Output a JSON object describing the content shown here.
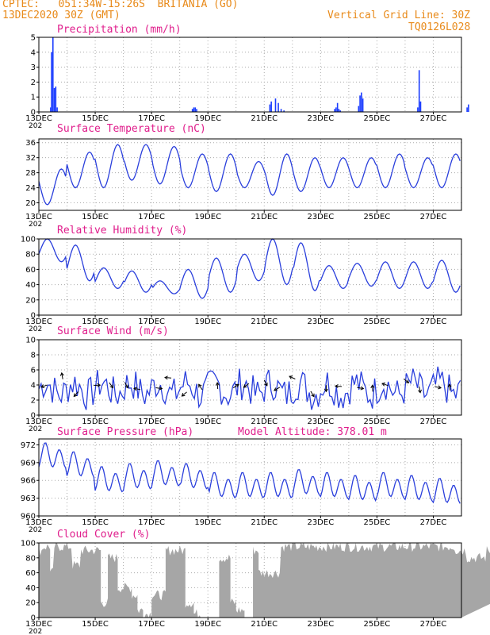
{
  "header": {
    "line1": "CPTEC:   051:34W-15:26S  BRITANIA (GO)",
    "line2": "13DEC2020 30Z (GMT)",
    "right1": "Vertical Grid Line: 30Z",
    "right2": "TQ0126L028"
  },
  "x_tick_labels": [
    "13DEC",
    "15DEC",
    "17DEC",
    "19DEC",
    "21DEC",
    "23DEC",
    "25DEC",
    "27DEC"
  ],
  "year_label": "202",
  "chart_data": [
    {
      "id": "precip",
      "type": "bar",
      "title": "Precipitation (mm/h)",
      "ylim": [
        0,
        5
      ],
      "yticks": [
        0,
        1,
        2,
        3,
        4,
        5
      ],
      "x_unit": "days since 13DEC 00Z",
      "x": [
        0.42,
        0.45,
        0.5,
        0.55,
        0.6,
        0.65,
        5.45,
        5.5,
        5.55,
        5.6,
        8.2,
        8.25,
        8.4,
        8.5,
        8.6,
        8.7,
        10.5,
        10.55,
        10.6,
        10.65,
        10.7,
        11.35,
        11.4,
        11.45,
        11.5,
        13.45,
        13.5,
        13.55,
        15.2,
        15.25,
        16.4,
        16.45,
        18.1,
        18.15,
        18.2,
        18.25,
        18.3,
        19.15,
        19.2,
        19.3
      ],
      "values": [
        0.3,
        4.0,
        5.0,
        1.6,
        1.7,
        0.3,
        0.2,
        0.3,
        0.3,
        0.2,
        0.5,
        0.7,
        0.9,
        0.6,
        0.2,
        0.1,
        0.2,
        0.3,
        0.6,
        0.2,
        0.1,
        0.4,
        1.1,
        1.3,
        0.9,
        0.3,
        2.8,
        0.7,
        0.3,
        0.5,
        0.3,
        0.5,
        1.3,
        0.8,
        0.5,
        0.4,
        0.2,
        0.3,
        0.5,
        0.3
      ]
    },
    {
      "id": "temp",
      "type": "line",
      "title": "Surface Temperature (nC)",
      "ylim": [
        18,
        37
      ],
      "yticks": [
        20,
        24,
        28,
        32,
        36
      ],
      "series": [
        {
          "min": [
            19.5,
            24,
            24,
            26,
            25,
            24,
            23,
            24,
            22,
            23,
            24,
            24,
            24,
            24,
            24
          ],
          "max": [
            29,
            33.5,
            35.5,
            35.5,
            35,
            33,
            33,
            31,
            33,
            32,
            32,
            32,
            33,
            32,
            33
          ]
        }
      ]
    },
    {
      "id": "rh",
      "type": "line",
      "title": "Relative Humidity (%)",
      "ylim": [
        0,
        100
      ],
      "yticks": [
        0,
        20,
        40,
        60,
        80,
        100
      ],
      "series": [
        {
          "min": [
            70,
            45,
            35,
            30,
            28,
            22,
            30,
            45,
            40,
            32,
            35,
            38,
            35,
            35,
            30
          ],
          "max": [
            100,
            92,
            62,
            58,
            45,
            60,
            75,
            80,
            100,
            95,
            65,
            68,
            70,
            70,
            72
          ]
        }
      ]
    },
    {
      "id": "wind",
      "type": "line",
      "title": "Surface Wind (m/s)",
      "ylim": [
        0,
        10
      ],
      "yticks": [
        0,
        2,
        4,
        6,
        8,
        10
      ],
      "series": [
        {
          "base": 3.5,
          "noise": 2.3
        }
      ]
    },
    {
      "id": "press",
      "type": "line",
      "title": "Surface Pressure (hPa)",
      "subtitle": "Model Altitude: 378.01  m",
      "ylim": [
        960,
        973
      ],
      "yticks": [
        960,
        963,
        966,
        969,
        972
      ],
      "series": [
        {
          "daily_mean": [
            970,
            968.5,
            966,
            966.5,
            967,
            966.5,
            965,
            965,
            965,
            965.5,
            965,
            964.5,
            965,
            964.5,
            964
          ]
        }
      ]
    },
    {
      "id": "cloud",
      "type": "area",
      "title": "Cloud Cover (%)",
      "ylim": [
        0,
        100
      ],
      "yticks": [
        0,
        20,
        40,
        60,
        80,
        100
      ],
      "series": [
        {
          "segments": [
            [
              0,
              0.15,
              90
            ],
            [
              0.15,
              0.4,
              95
            ],
            [
              0.4,
              0.55,
              60
            ],
            [
              0.55,
              1.2,
              95
            ],
            [
              1.2,
              1.5,
              70
            ],
            [
              1.5,
              2.2,
              90
            ],
            [
              2.2,
              2.45,
              20
            ],
            [
              2.45,
              2.8,
              80
            ],
            [
              2.8,
              3.3,
              40
            ],
            [
              3.3,
              3.5,
              30
            ],
            [
              3.5,
              3.7,
              10
            ],
            [
              3.7,
              4.0,
              5
            ],
            [
              4.0,
              4.5,
              30
            ],
            [
              4.5,
              5.2,
              90
            ],
            [
              5.2,
              5.5,
              20
            ],
            [
              5.5,
              5.8,
              5
            ],
            [
              5.8,
              6.4,
              0
            ],
            [
              6.4,
              6.8,
              80
            ],
            [
              6.8,
              7.0,
              20
            ],
            [
              7.0,
              7.3,
              10
            ],
            [
              7.3,
              7.6,
              0
            ],
            [
              7.6,
              7.8,
              90
            ],
            [
              7.8,
              8.6,
              60
            ],
            [
              8.6,
              11.6,
              95
            ],
            [
              11.6,
              14.8,
              95
            ],
            [
              14.8,
              15.2,
              90
            ],
            [
              15.2,
              15.9,
              80
            ],
            [
              15.9,
              16.4,
              90
            ],
            [
              16.4,
              20,
              95
            ]
          ]
        }
      ]
    }
  ]
}
